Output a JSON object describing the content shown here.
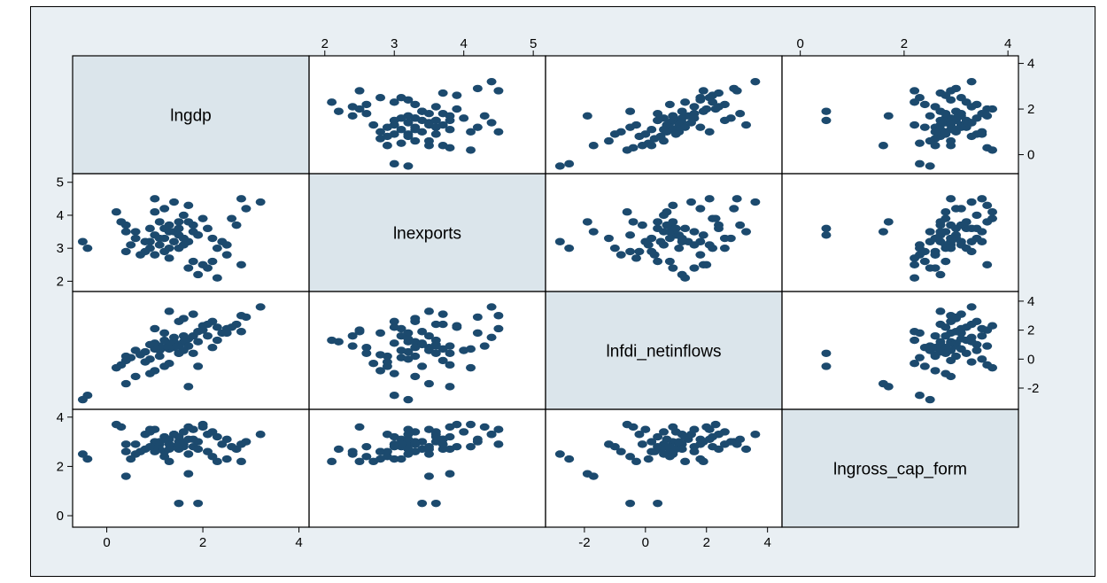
{
  "chart_data": {
    "type": "scatter-matrix",
    "variables": [
      "lngdp",
      "lnexports",
      "lnfdi_netinflows",
      "lngross_cap_form"
    ],
    "ranges": {
      "lngdp": [
        -0.6,
        4.1
      ],
      "lnexports": [
        1.85,
        5.1
      ],
      "lnfdi_netinflows": [
        -3.1,
        4.3
      ],
      "lngross_cap_form": [
        -0.25,
        4.1
      ]
    },
    "axes": {
      "top": [
        {
          "var": "lnexports",
          "ticks": [
            "2",
            "3",
            "4",
            "5"
          ]
        },
        {
          "var": "lngross_cap_form",
          "ticks": [
            "0",
            "2",
            "4"
          ]
        }
      ],
      "bottom": [
        {
          "var": "lngdp",
          "ticks": [
            "0",
            "2",
            "4"
          ]
        },
        {
          "var": "lnfdi_netinflows",
          "ticks": [
            "-2",
            "0",
            "2",
            "4"
          ]
        }
      ],
      "left": [
        {
          "var": "lnexports",
          "ticks": [
            "5",
            "4",
            "3",
            "2"
          ]
        },
        {
          "var": "lngross_cap_form",
          "ticks": [
            "4",
            "2",
            "0"
          ]
        }
      ],
      "right": [
        {
          "var": "lngdp",
          "ticks": [
            "4",
            "2",
            "0"
          ]
        },
        {
          "var": "lnfdi_netinflows",
          "ticks": [
            "4",
            "2",
            "0",
            "-2"
          ]
        }
      ]
    },
    "observations": [
      [
        3.2,
        4.4,
        3.6,
        3.3
      ],
      [
        2.9,
        4.2,
        2.9,
        3.0
      ],
      [
        2.8,
        4.5,
        3.0,
        2.9
      ],
      [
        2.6,
        3.9,
        2.2,
        2.8
      ],
      [
        2.4,
        3.2,
        1.8,
        2.9
      ],
      [
        2.7,
        3.7,
        2.4,
        2.7
      ],
      [
        2.5,
        3.1,
        2.1,
        3.1
      ],
      [
        2.2,
        3.3,
        2.6,
        3.4
      ],
      [
        2.1,
        3.6,
        2.4,
        3.3
      ],
      [
        2.0,
        2.5,
        2.0,
        3.6
      ],
      [
        2.3,
        3.0,
        2.2,
        3.2
      ],
      [
        1.9,
        3.4,
        1.9,
        3.0
      ],
      [
        1.8,
        3.5,
        1.6,
        3.5
      ],
      [
        1.7,
        3.2,
        1.4,
        3.1
      ],
      [
        1.6,
        3.3,
        1.2,
        2.9
      ],
      [
        1.6,
        3.1,
        1.6,
        2.8
      ],
      [
        1.5,
        3.4,
        1.0,
        2.7
      ],
      [
        1.5,
        3.6,
        0.9,
        3.0
      ],
      [
        1.4,
        3.2,
        1.2,
        3.3
      ],
      [
        1.4,
        3.5,
        0.8,
        2.8
      ],
      [
        1.3,
        3.0,
        1.1,
        2.9
      ],
      [
        1.3,
        3.7,
        0.7,
        3.1
      ],
      [
        1.2,
        3.3,
        0.8,
        2.6
      ],
      [
        1.2,
        3.6,
        1.3,
        3.2
      ],
      [
        1.1,
        3.1,
        0.6,
        2.9
      ],
      [
        1.1,
        3.8,
        0.9,
        2.7
      ],
      [
        1.0,
        3.4,
        1.1,
        3.0
      ],
      [
        1.0,
        4.1,
        0.7,
        2.8
      ],
      [
        0.9,
        3.6,
        1.0,
        3.4
      ],
      [
        0.8,
        3.2,
        0.5,
        2.7
      ],
      [
        0.7,
        2.8,
        0.3,
        2.6
      ],
      [
        0.6,
        3.5,
        0.6,
        2.5
      ],
      [
        0.5,
        3.1,
        0.1,
        2.3
      ],
      [
        0.4,
        2.9,
        0.2,
        2.6
      ],
      [
        0.4,
        3.7,
        -0.1,
        2.9
      ],
      [
        1.8,
        2.6,
        0.4,
        2.8
      ],
      [
        1.7,
        2.4,
        0.9,
        2.5
      ],
      [
        1.9,
        2.2,
        1.2,
        2.7
      ],
      [
        2.1,
        2.4,
        1.6,
        2.6
      ],
      [
        2.3,
        2.1,
        1.3,
        2.2
      ],
      [
        2.2,
        2.6,
        0.8,
        2.4
      ],
      [
        2.5,
        2.8,
        1.8,
        2.3
      ],
      [
        2.8,
        2.5,
        1.9,
        2.2
      ],
      [
        1.3,
        2.7,
        -0.3,
        2.2
      ],
      [
        1.2,
        2.9,
        -0.5,
        2.4
      ],
      [
        1.0,
        2.8,
        -0.8,
        2.6
      ],
      [
        0.9,
        3.0,
        -1.0,
        2.8
      ],
      [
        1.1,
        3.3,
        0.2,
        3.0
      ],
      [
        1.5,
        3.8,
        0.4,
        3.2
      ],
      [
        1.6,
        4.0,
        0.6,
        3.4
      ],
      [
        1.7,
        4.3,
        0.9,
        3.6
      ],
      [
        1.4,
        4.4,
        1.5,
        3.3
      ],
      [
        1.2,
        4.2,
        1.8,
        3.1
      ],
      [
        1.0,
        4.5,
        2.1,
        3.5
      ],
      [
        2.0,
        3.9,
        2.3,
        3.7
      ],
      [
        1.8,
        3.7,
        3.1,
        3.1
      ],
      [
        1.5,
        3.0,
        2.6,
        2.9
      ],
      [
        1.3,
        3.5,
        3.3,
        2.7
      ],
      [
        1.6,
        3.3,
        2.8,
        3.0
      ],
      [
        0.3,
        3.8,
        -0.4,
        3.6
      ],
      [
        0.2,
        4.1,
        -0.6,
        3.7
      ],
      [
        0.6,
        3.3,
        -1.2,
        2.9
      ],
      [
        0.8,
        2.9,
        -0.2,
        3.3
      ],
      [
        0.9,
        3.2,
        0.0,
        3.5
      ],
      [
        -0.5,
        3.2,
        -2.8,
        2.5
      ],
      [
        0.4,
        3.5,
        -1.7,
        1.6
      ],
      [
        1.9,
        3.4,
        -0.5,
        0.5
      ],
      [
        1.5,
        3.6,
        0.4,
        0.5
      ],
      [
        1.7,
        3.8,
        -1.9,
        1.7
      ],
      [
        -0.4,
        3.0,
        -2.5,
        2.3
      ]
    ]
  }
}
